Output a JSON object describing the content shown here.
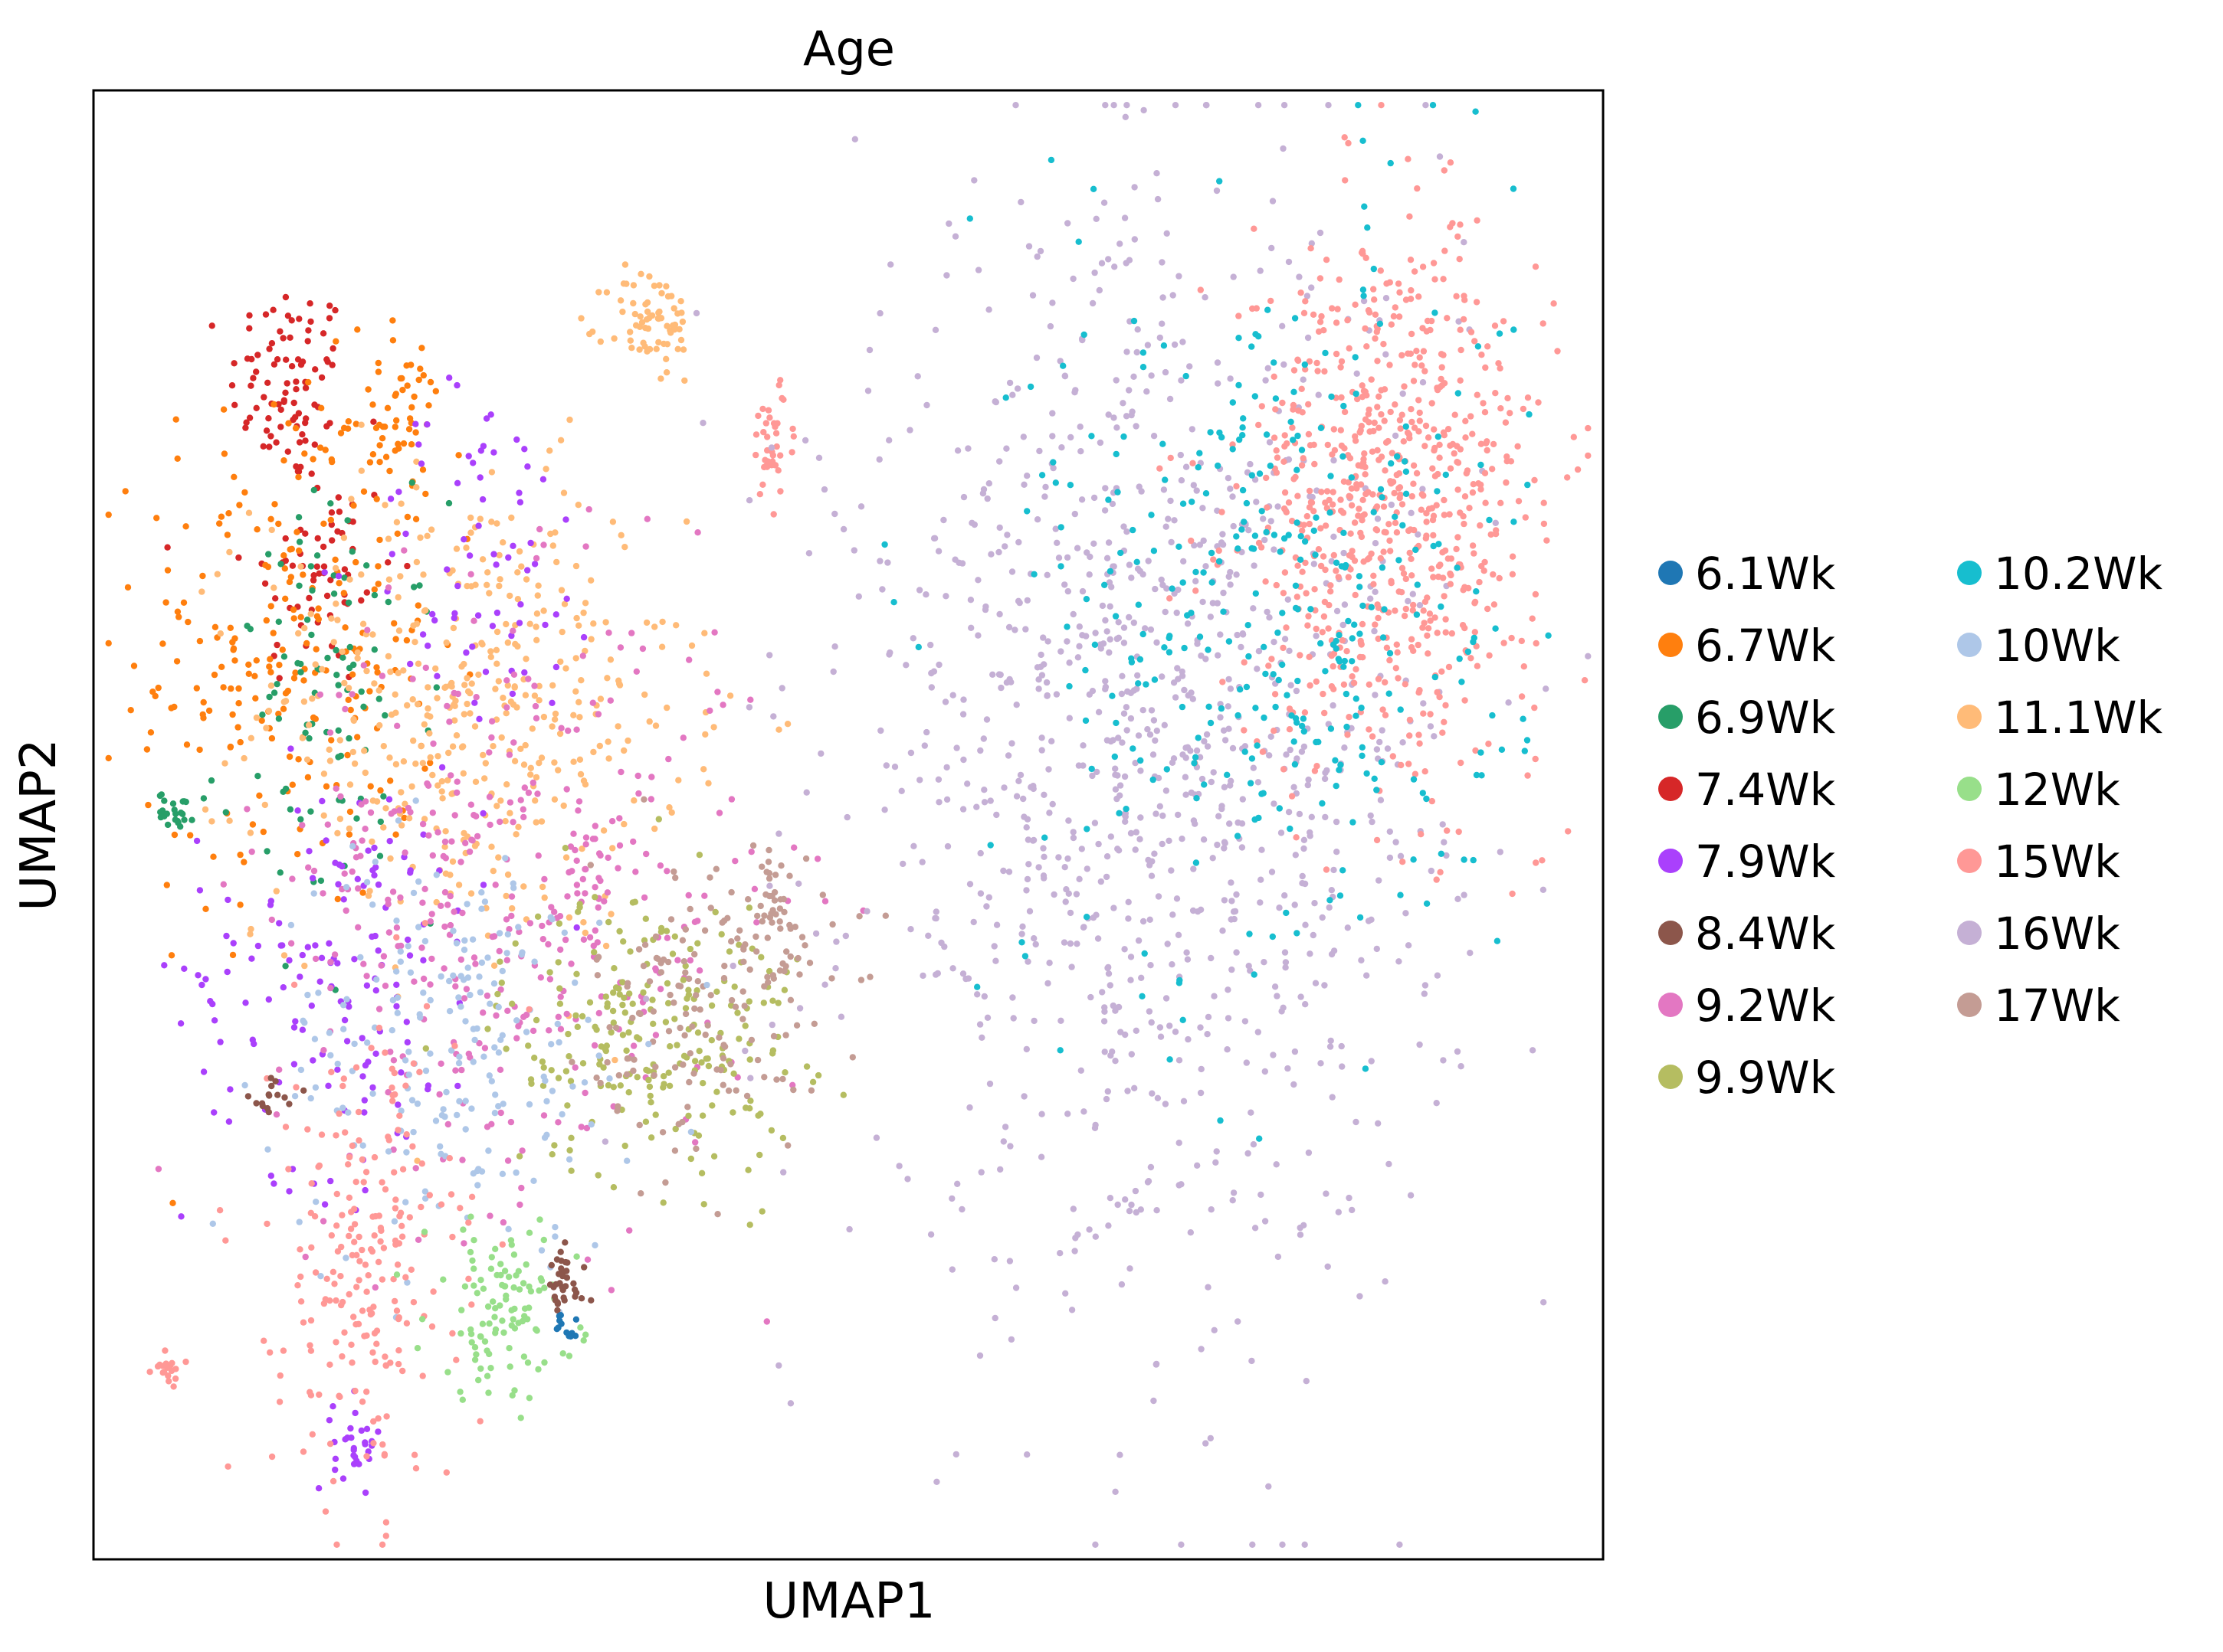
{
  "chart_data": {
    "type": "scatter",
    "title": "Age",
    "xlabel": "UMAP1",
    "ylabel": "UMAP2",
    "xlim": [
      0,
      100
    ],
    "ylim": [
      0,
      100
    ],
    "grid": false,
    "ticks": false,
    "legend_placement": "right",
    "legend_columns": 2,
    "series": [
      {
        "name": "6.1Wk",
        "color": "#1f77b4"
      },
      {
        "name": "6.7Wk",
        "color": "#ff7f0e"
      },
      {
        "name": "6.9Wk",
        "color": "#279e68"
      },
      {
        "name": "7.4Wk",
        "color": "#d62728"
      },
      {
        "name": "7.9Wk",
        "color": "#aa40fc"
      },
      {
        "name": "8.4Wk",
        "color": "#8c564b"
      },
      {
        "name": "9.2Wk",
        "color": "#e377c2"
      },
      {
        "name": "9.9Wk",
        "color": "#b5bd61"
      },
      {
        "name": "10.2Wk",
        "color": "#17becf"
      },
      {
        "name": "10Wk",
        "color": "#aec7e8"
      },
      {
        "name": "11.1Wk",
        "color": "#ffbb78"
      },
      {
        "name": "12Wk",
        "color": "#98df8a"
      },
      {
        "name": "15Wk",
        "color": "#ff9896"
      },
      {
        "name": "16Wk",
        "color": "#c5b0d5"
      },
      {
        "name": "17Wk",
        "color": "#c49c94"
      }
    ],
    "clusters": [
      {
        "series": "7.4Wk",
        "cx": 13.0,
        "cy": 80.0,
        "sx": 2.0,
        "sy": 3.5,
        "n": 90
      },
      {
        "series": "7.4Wk",
        "cx": 15.0,
        "cy": 67.0,
        "sx": 2.5,
        "sy": 4.0,
        "n": 60
      },
      {
        "series": "6.7Wk",
        "cx": 13.0,
        "cy": 62.0,
        "sx": 5.0,
        "sy": 9.0,
        "n": 230
      },
      {
        "series": "6.7Wk",
        "cx": 20.0,
        "cy": 78.0,
        "sx": 1.5,
        "sy": 2.5,
        "n": 50
      },
      {
        "series": "6.9Wk",
        "cx": 16.0,
        "cy": 58.0,
        "sx": 3.5,
        "sy": 7.0,
        "n": 90
      },
      {
        "series": "6.9Wk",
        "cx": 5.5,
        "cy": 51.0,
        "sx": 0.6,
        "sy": 0.6,
        "n": 25
      },
      {
        "series": "11.1Wk",
        "cx": 25.0,
        "cy": 58.0,
        "sx": 7.0,
        "sy": 8.0,
        "n": 420
      },
      {
        "series": "11.1Wk",
        "cx": 37.0,
        "cy": 84.0,
        "sx": 1.5,
        "sy": 2.0,
        "n": 70
      },
      {
        "series": "7.9Wk",
        "cx": 26.0,
        "cy": 68.0,
        "sx": 4.0,
        "sy": 6.0,
        "n": 70
      },
      {
        "series": "7.9Wk",
        "cx": 16.0,
        "cy": 40.0,
        "sx": 5.0,
        "sy": 7.0,
        "n": 140
      },
      {
        "series": "7.9Wk",
        "cx": 17.5,
        "cy": 8.0,
        "sx": 0.8,
        "sy": 1.5,
        "n": 30
      },
      {
        "series": "9.2Wk",
        "cx": 28.0,
        "cy": 45.0,
        "sx": 8.0,
        "sy": 10.0,
        "n": 380
      },
      {
        "series": "9.9Wk",
        "cx": 37.0,
        "cy": 36.0,
        "sx": 5.0,
        "sy": 5.0,
        "n": 230
      },
      {
        "series": "17Wk",
        "cx": 41.0,
        "cy": 38.0,
        "sx": 4.0,
        "sy": 5.0,
        "n": 150
      },
      {
        "series": "17Wk",
        "cx": 45.0,
        "cy": 44.0,
        "sx": 1.0,
        "sy": 2.5,
        "n": 40
      },
      {
        "series": "10Wk",
        "cx": 24.0,
        "cy": 35.0,
        "sx": 6.0,
        "sy": 7.0,
        "n": 200
      },
      {
        "series": "15Wk",
        "cx": 18.0,
        "cy": 20.0,
        "sx": 3.0,
        "sy": 8.0,
        "n": 220
      },
      {
        "series": "15Wk",
        "cx": 45.0,
        "cy": 76.0,
        "sx": 0.8,
        "sy": 2.0,
        "n": 40
      },
      {
        "series": "15Wk",
        "cx": 5.0,
        "cy": 13.0,
        "sx": 0.5,
        "sy": 0.6,
        "n": 20
      },
      {
        "series": "12Wk",
        "cx": 27.0,
        "cy": 17.0,
        "sx": 2.5,
        "sy": 3.0,
        "n": 110
      },
      {
        "series": "8.4Wk",
        "cx": 31.0,
        "cy": 18.5,
        "sx": 0.8,
        "sy": 1.2,
        "n": 35
      },
      {
        "series": "8.4Wk",
        "cx": 12.0,
        "cy": 31.5,
        "sx": 0.8,
        "sy": 0.8,
        "n": 15
      },
      {
        "series": "6.1Wk",
        "cx": 31.5,
        "cy": 16.0,
        "sx": 0.6,
        "sy": 0.8,
        "n": 12
      },
      {
        "series": "16Wk",
        "cx": 70.0,
        "cy": 55.0,
        "sx": 10.0,
        "sy": 18.0,
        "n": 1100
      },
      {
        "series": "15Wk",
        "cx": 86.0,
        "cy": 72.0,
        "sx": 5.0,
        "sy": 9.0,
        "n": 700
      },
      {
        "series": "10.2Wk",
        "cx": 78.0,
        "cy": 65.0,
        "sx": 8.0,
        "sy": 13.0,
        "n": 350
      }
    ]
  }
}
